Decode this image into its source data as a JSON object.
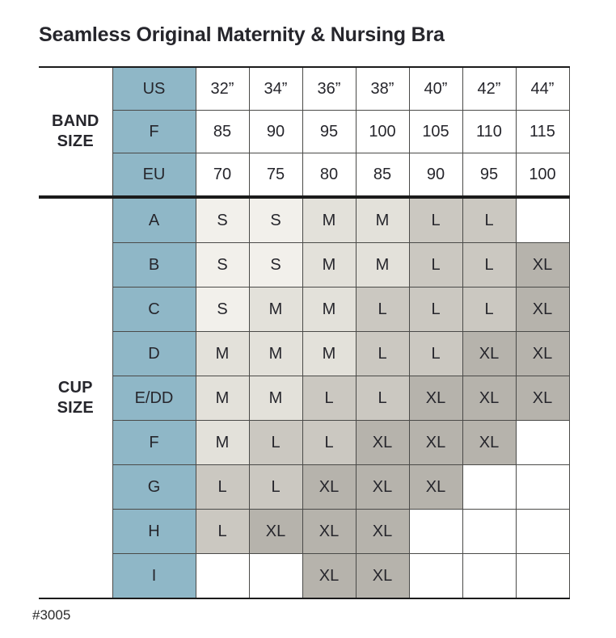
{
  "page": {
    "title": "Seamless Original Maternity & Nursing Bra",
    "footer_note": "#3005"
  },
  "colors": {
    "header_blue": "#8fb7c7",
    "cell_s": "#f2f0eb",
    "cell_m": "#e3e1da",
    "cell_l": "#cbc8c1",
    "cell_xl": "#b6b3ac",
    "cell_empty": "#ffffff",
    "grid_line": "#4a4a48",
    "heavy_rule": "#1b1b1b",
    "text": "#26262c"
  },
  "chart_data": {
    "type": "table",
    "title": "Seamless Original Maternity & Nursing Bra",
    "band_section_label": "BAND\nSIZE",
    "cup_section_label": "CUP\nSIZE",
    "band_rows": [
      {
        "label": "US",
        "values": [
          "32”",
          "34”",
          "36”",
          "38”",
          "40”",
          "42”",
          "44”"
        ]
      },
      {
        "label": "F",
        "values": [
          "85",
          "90",
          "95",
          "100",
          "105",
          "110",
          "115"
        ]
      },
      {
        "label": "EU",
        "values": [
          "70",
          "75",
          "80",
          "85",
          "90",
          "95",
          "100"
        ]
      }
    ],
    "cup_rows": [
      {
        "label": "A",
        "values": [
          "S",
          "S",
          "M",
          "M",
          "L",
          "L",
          ""
        ]
      },
      {
        "label": "B",
        "values": [
          "S",
          "S",
          "M",
          "M",
          "L",
          "L",
          "XL"
        ]
      },
      {
        "label": "C",
        "values": [
          "S",
          "M",
          "M",
          "L",
          "L",
          "L",
          "XL"
        ]
      },
      {
        "label": "D",
        "values": [
          "M",
          "M",
          "M",
          "L",
          "L",
          "XL",
          "XL"
        ]
      },
      {
        "label": "E/DD",
        "values": [
          "M",
          "M",
          "L",
          "L",
          "XL",
          "XL",
          "XL"
        ]
      },
      {
        "label": "F",
        "values": [
          "M",
          "L",
          "L",
          "XL",
          "XL",
          "XL",
          ""
        ]
      },
      {
        "label": "G",
        "values": [
          "L",
          "L",
          "XL",
          "XL",
          "XL",
          "",
          ""
        ]
      },
      {
        "label": "H",
        "values": [
          "L",
          "XL",
          "XL",
          "XL",
          "",
          "",
          ""
        ]
      },
      {
        "label": "I",
        "values": [
          "",
          "",
          "XL",
          "XL",
          "",
          "",
          ""
        ]
      }
    ],
    "size_color_legend": {
      "S": "cell_s",
      "M": "cell_m",
      "L": "cell_l",
      "XL": "cell_xl"
    }
  }
}
